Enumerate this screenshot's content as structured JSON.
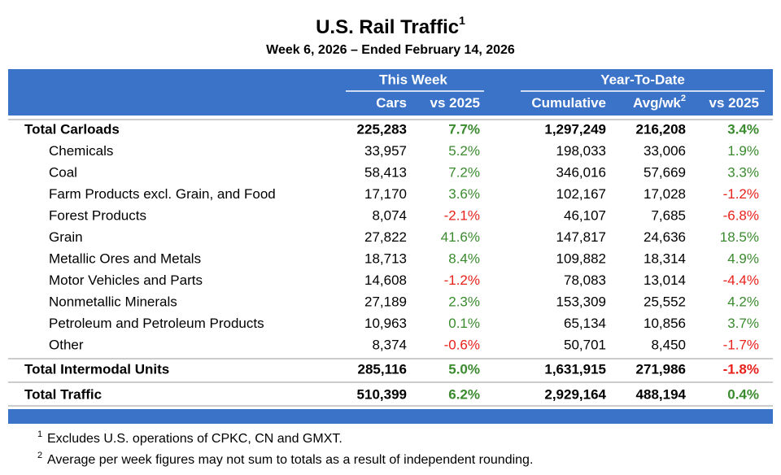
{
  "header": {
    "title": "U.S. Rail Traffic",
    "title_note": "1",
    "subtitle": "Week 6, 2026 – Ended February 14, 2026"
  },
  "table": {
    "header_groups": [
      "This Week",
      "Year-To-Date"
    ],
    "columns": [
      {
        "label": "Cars"
      },
      {
        "label": "vs 2025"
      },
      {
        "label": "Cumulative"
      },
      {
        "label": "Avg/wk",
        "note": "2"
      },
      {
        "label": "vs 2025"
      }
    ],
    "carloads": {
      "label": "Total Carloads",
      "cells": [
        "225,283",
        "7.7%",
        "1,297,249",
        "216,208",
        "3.4%"
      ]
    },
    "commodities": [
      {
        "label": "Chemicals",
        "cells": [
          "33,957",
          "5.2%",
          "198,033",
          "33,006",
          "1.9%"
        ]
      },
      {
        "label": "Coal",
        "cells": [
          "58,413",
          "7.2%",
          "346,016",
          "57,669",
          "3.3%"
        ]
      },
      {
        "label": "Farm Products excl. Grain, and Food",
        "cells": [
          "17,170",
          "3.6%",
          "102,167",
          "17,028",
          "-1.2%"
        ]
      },
      {
        "label": "Forest Products",
        "cells": [
          "8,074",
          "-2.1%",
          "46,107",
          "7,685",
          "-6.8%"
        ]
      },
      {
        "label": "Grain",
        "cells": [
          "27,822",
          "41.6%",
          "147,817",
          "24,636",
          "18.5%"
        ]
      },
      {
        "label": "Metallic Ores and Metals",
        "cells": [
          "18,713",
          "8.4%",
          "109,882",
          "18,314",
          "4.9%"
        ]
      },
      {
        "label": "Motor Vehicles and Parts",
        "cells": [
          "14,608",
          "-1.2%",
          "78,083",
          "13,014",
          "-4.4%"
        ]
      },
      {
        "label": "Nonmetallic Minerals",
        "cells": [
          "27,189",
          "2.3%",
          "153,309",
          "25,552",
          "4.2%"
        ]
      },
      {
        "label": "Petroleum and Petroleum Products",
        "cells": [
          "10,963",
          "0.1%",
          "65,134",
          "10,856",
          "3.7%"
        ]
      },
      {
        "label": "Other",
        "cells": [
          "8,374",
          "-0.6%",
          "50,701",
          "8,450",
          "-1.7%"
        ]
      }
    ],
    "intermodal": {
      "label": "Total Intermodal Units",
      "cells": [
        "285,116",
        "5.0%",
        "1,631,915",
        "271,986",
        "-1.8%"
      ]
    },
    "traffic": {
      "label": "Total Traffic",
      "cells": [
        "510,399",
        "6.2%",
        "2,929,164",
        "488,194",
        "0.4%"
      ]
    }
  },
  "footnotes": [
    {
      "mark": "1",
      "text": "Excludes U.S. operations of CPKC, CN and GMXT."
    },
    {
      "mark": "2",
      "text": "Average per week figures may not sum to totals as a result of independent rounding."
    }
  ]
}
